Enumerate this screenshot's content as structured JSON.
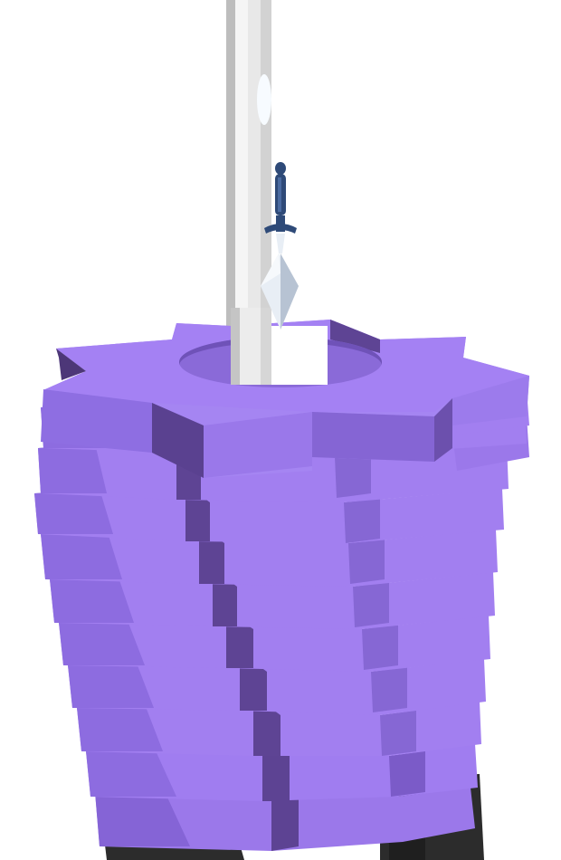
{
  "game": {
    "type": "knife-throw stack tower",
    "colors": {
      "background": "#ffffff",
      "layer_top": "#a27ff0",
      "layer_front": "#8d6ce0",
      "layer_side": "#5e4494",
      "layer_dark_side": "#4d3778",
      "hole": "#8a6ad8",
      "obstacle_layer": "#2c2c2c",
      "pole_light": "#f3f3f3",
      "pole_mid": "#d9d9d9",
      "pole_shadow": "#a8a8a8",
      "knife_handle": "#2e4a78",
      "knife_blade": "#e8eef5",
      "knife_blade_shade": "#b7c3d3"
    }
  }
}
